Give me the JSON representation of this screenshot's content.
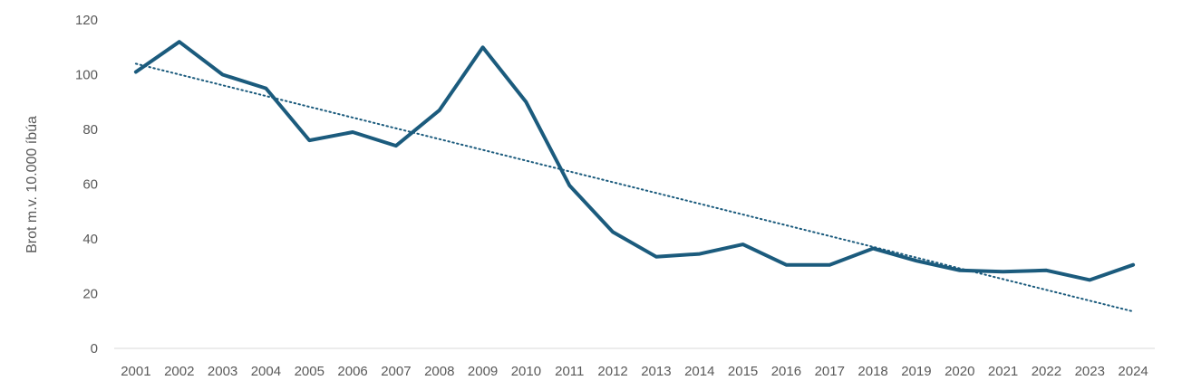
{
  "chart_data": {
    "type": "line",
    "title": "",
    "xlabel": "",
    "ylabel": "Brot m.v. 10.000 íbúa",
    "x": [
      "2001",
      "2002",
      "2003",
      "2004",
      "2005",
      "2006",
      "2007",
      "2008",
      "2009",
      "2010",
      "2011",
      "2012",
      "2013",
      "2014",
      "2015",
      "2016",
      "2017",
      "2018",
      "2019",
      "2020",
      "2021",
      "2022",
      "2023",
      "2024"
    ],
    "series": [
      {
        "values": [
          101,
          112,
          100,
          95,
          76,
          79,
          74,
          87,
          110,
          90,
          59.5,
          42.5,
          33.5,
          34.5,
          38,
          30.5,
          30.5,
          36.5,
          32,
          28.5,
          28,
          28.5,
          25,
          30.5
        ],
        "color": "#1b5b7d"
      }
    ],
    "trendline": {
      "type": "linear",
      "style": "dotted",
      "color": "#1b5b7d",
      "start": 104,
      "end": 13.5
    },
    "ylim": [
      0,
      120
    ],
    "yticks": [
      0,
      20,
      40,
      60,
      80,
      100,
      120
    ],
    "grid": false,
    "legend": "none"
  }
}
